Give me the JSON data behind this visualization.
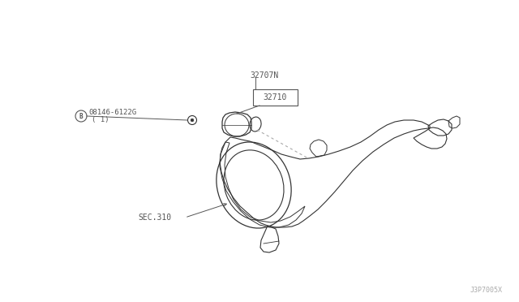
{
  "bg_color": "#ffffff",
  "line_color": "#555555",
  "text_color": "#555555",
  "dark_line": "#333333",
  "label_32707N": "32707N",
  "label_32710": "32710",
  "label_bolt": "08146-6122G",
  "label_bolt2": "( 1)",
  "label_sec": "SEC.310",
  "label_b": "B",
  "watermark": "J3P7005X",
  "fig_width": 6.4,
  "fig_height": 3.72,
  "dpi": 100
}
